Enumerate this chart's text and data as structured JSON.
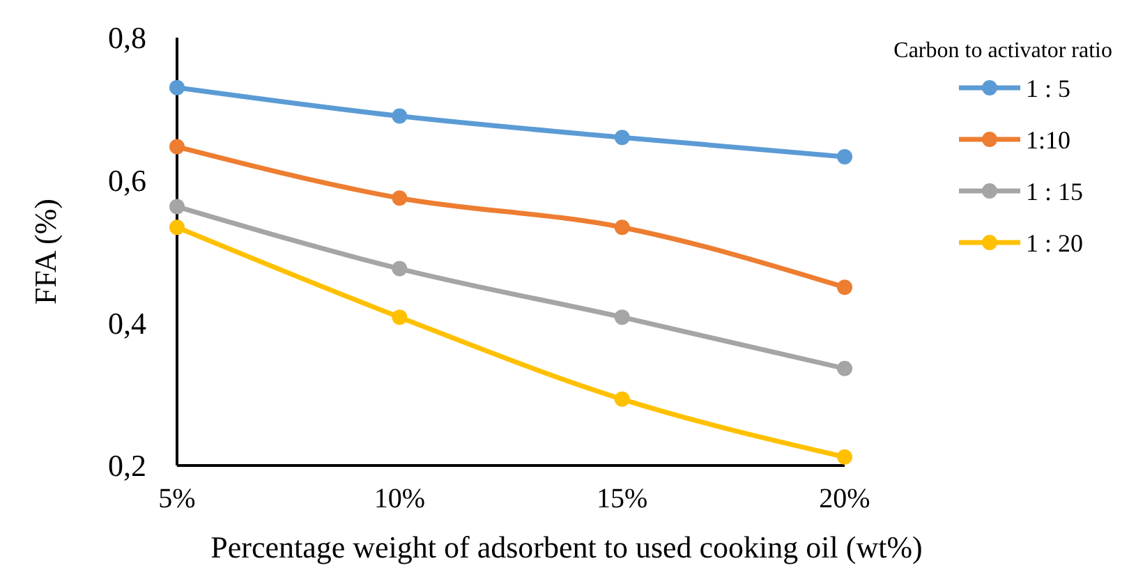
{
  "chart_data": {
    "type": "line",
    "xlabel": "Percentage weight of adsorbent to used cooking oil (wt%)",
    "ylabel": "FFA (%)",
    "legend_title": "Carbon to activator ratio",
    "categories": [
      "5%",
      "10%",
      "15%",
      "20%"
    ],
    "ylim": [
      0.2,
      0.8
    ],
    "yticks": [
      {
        "value": 0.2,
        "label": "0,2"
      },
      {
        "value": 0.4,
        "label": "0,4"
      },
      {
        "value": 0.6,
        "label": "0,6"
      },
      {
        "value": 0.8,
        "label": "0,8"
      }
    ],
    "grid": false,
    "legend": "right",
    "marker": "circle",
    "line_style": "solid",
    "series": [
      {
        "name": "1 : 5",
        "color": "#5b9bd5",
        "values": [
          0.73,
          0.69,
          0.66,
          0.633
        ]
      },
      {
        "name": "1:10",
        "color": "#ed7d31",
        "values": [
          0.647,
          0.575,
          0.534,
          0.45
        ]
      },
      {
        "name": "1 : 15",
        "color": "#a5a5a5",
        "values": [
          0.563,
          0.476,
          0.408,
          0.336
        ]
      },
      {
        "name": "1 : 20",
        "color": "#ffc000",
        "values": [
          0.534,
          0.408,
          0.293,
          0.212
        ]
      }
    ]
  }
}
